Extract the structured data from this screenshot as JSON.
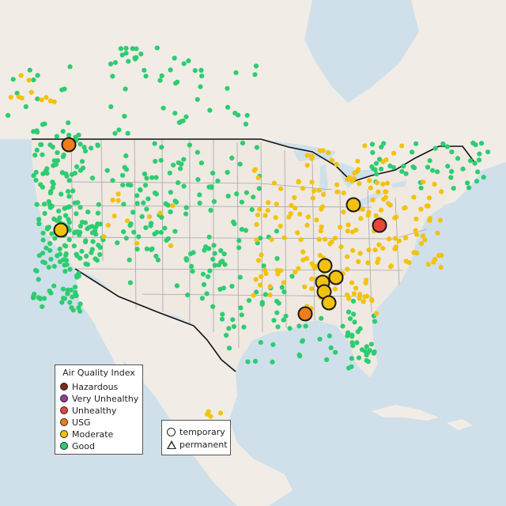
{
  "colors": {
    "water": "#cfe0ea",
    "land": "#f1ede6",
    "usa_land": "#efe9e2",
    "state_line": "#9a9a9a",
    "border": "#111111",
    "hazardous": "#7e2b1f",
    "very_unhealthy": "#8f3f97",
    "unhealthy": "#e8463a",
    "usg": "#f07d1a",
    "moderate": "#f3c20e",
    "good": "#2ecc71",
    "gray_station": "#bdbdbd"
  },
  "legend": {
    "title": "Air Quality Index",
    "items": [
      {
        "label": "Hazardous",
        "color": "#7e2b1f",
        "icon": "hazardous-dot"
      },
      {
        "label": "Very Unhealthy",
        "color": "#8f3f97",
        "icon": "very-unhealthy-dot"
      },
      {
        "label": "Unhealthy",
        "color": "#e8463a",
        "icon": "unhealthy-dot"
      },
      {
        "label": "USG",
        "color": "#f07d1a",
        "icon": "usg-dot"
      },
      {
        "label": "Moderate",
        "color": "#f3c20e",
        "icon": "moderate-dot"
      },
      {
        "label": "Good",
        "color": "#2ecc71",
        "icon": "good-dot"
      }
    ]
  },
  "type_legend": {
    "items": [
      {
        "label": "temporary",
        "icon": "circle-icon"
      },
      {
        "label": "permanent",
        "icon": "triangle-icon"
      }
    ]
  }
}
